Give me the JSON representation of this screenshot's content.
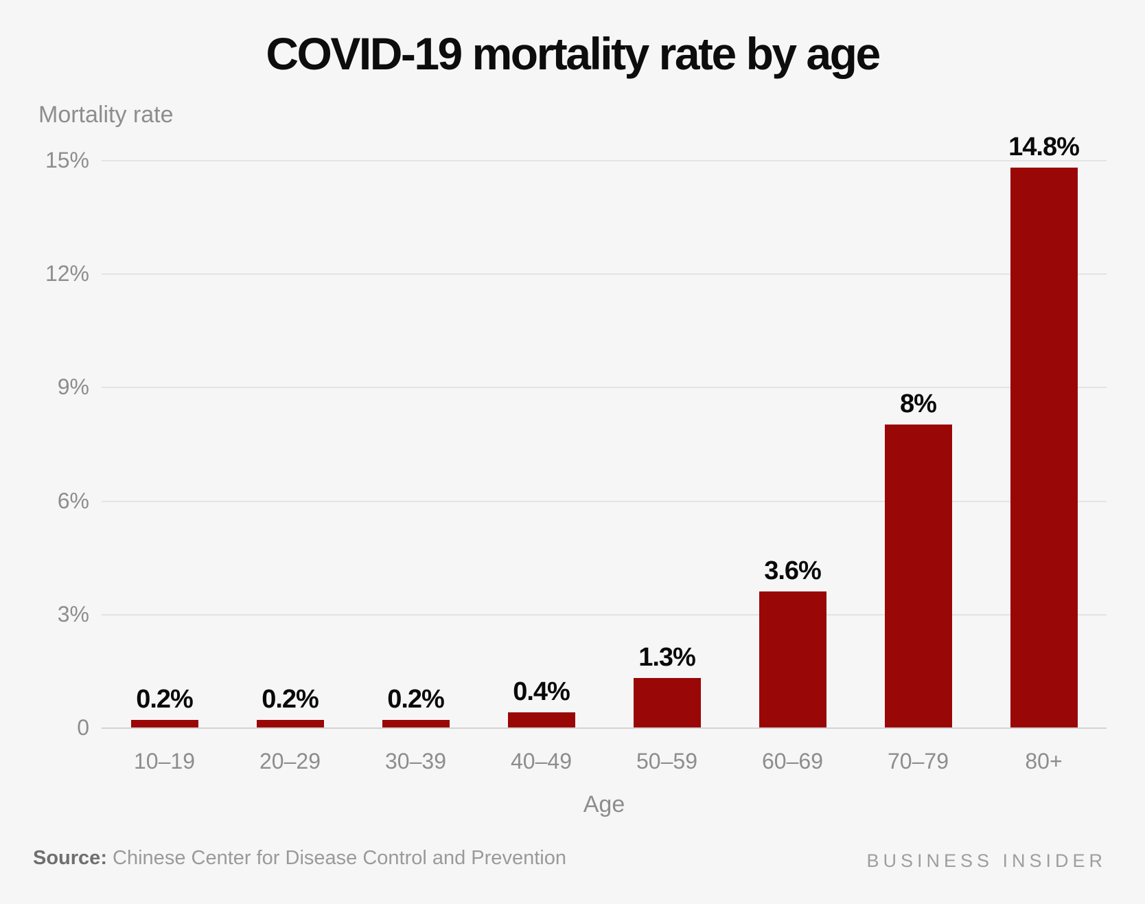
{
  "title": "COVID-19 mortality rate by age",
  "y_axis_title": "Mortality rate",
  "x_axis_title": "Age",
  "footer": {
    "source_label": "Source:",
    "source_text": " Chinese Center for Disease Control and Prevention",
    "brand": "BUSINESS INSIDER"
  },
  "colors": {
    "background": "#f6f6f6",
    "bar": "#990707",
    "grid": "#e3e3e3",
    "axis_line": "#d3d3d3",
    "title_text": "#0d0d0d",
    "muted_text": "#8d8d8d",
    "value_label_text": "#0a0a0a",
    "source_label_text": "#6f6f6f",
    "source_text_color": "#9a9a9a",
    "brand_text": "#9e9e9e"
  },
  "chart_data": {
    "type": "bar",
    "title": "COVID-19 mortality rate by age",
    "xlabel": "Age",
    "ylabel": "Mortality rate",
    "categories": [
      "10–19",
      "20–29",
      "30–39",
      "40–49",
      "50–59",
      "60–69",
      "70–79",
      "80+"
    ],
    "values": [
      0.2,
      0.2,
      0.2,
      0.4,
      1.3,
      3.6,
      8,
      14.8
    ],
    "value_labels": [
      "0.2%",
      "0.2%",
      "0.2%",
      "0.4%",
      "1.3%",
      "3.6%",
      "8%",
      "14.8%"
    ],
    "ylim": [
      0,
      15
    ],
    "yticks": [
      {
        "value": 0,
        "label": "0"
      },
      {
        "value": 3,
        "label": "3%"
      },
      {
        "value": 6,
        "label": "6%"
      },
      {
        "value": 9,
        "label": "9%"
      },
      {
        "value": 12,
        "label": "12%"
      },
      {
        "value": 15,
        "label": "15%"
      }
    ],
    "grid": "horizontal",
    "legend": "none",
    "bar_color": "#990707"
  }
}
